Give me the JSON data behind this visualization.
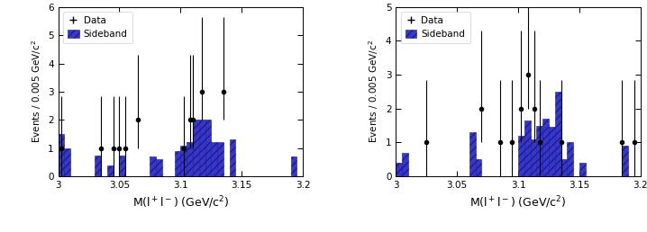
{
  "left_plot": {
    "ylabel": "Events / 0.005 GeV/c$^2$",
    "xlim": [
      3.0,
      3.2
    ],
    "ylim": [
      0,
      6
    ],
    "yticks": [
      0,
      1,
      2,
      3,
      4,
      5,
      6
    ],
    "xtick_values": [
      3.0,
      3.05,
      3.1,
      3.15,
      3.2
    ],
    "xtick_labels": [
      "3",
      "3.05",
      "3.1",
      "3.15",
      "3.2"
    ],
    "bin_width": 0.005,
    "sideband_edges": [
      3.0,
      3.005,
      3.01,
      3.015,
      3.02,
      3.025,
      3.03,
      3.035,
      3.04,
      3.045,
      3.05,
      3.055,
      3.06,
      3.065,
      3.07,
      3.075,
      3.08,
      3.085,
      3.09,
      3.095,
      3.1,
      3.105,
      3.11,
      3.115,
      3.12,
      3.125,
      3.13,
      3.135,
      3.14,
      3.145,
      3.15,
      3.155,
      3.16,
      3.165,
      3.17,
      3.175,
      3.18,
      3.185,
      3.19,
      3.195,
      3.2
    ],
    "sideband_heights": [
      1.5,
      1.0,
      0.0,
      0.0,
      0.0,
      0.0,
      0.75,
      0.0,
      0.4,
      0.0,
      0.75,
      0.0,
      0.0,
      0.0,
      0.0,
      0.7,
      0.6,
      0.0,
      0.0,
      0.9,
      1.1,
      1.2,
      2.0,
      2.0,
      2.0,
      1.2,
      1.2,
      0.0,
      1.3,
      0.0,
      0.0,
      0.0,
      0.0,
      0.0,
      0.0,
      0.0,
      0.0,
      0.0,
      0.7,
      0.0
    ],
    "data_x": [
      3.0025,
      3.035,
      3.045,
      3.05,
      3.055,
      3.065,
      3.1025,
      3.1075,
      3.11,
      3.1175,
      3.135
    ],
    "data_y": [
      1.0,
      1.0,
      1.0,
      1.0,
      1.0,
      2.0,
      1.0,
      2.0,
      2.0,
      3.0,
      3.0
    ],
    "data_yerr_lo": [
      1.0,
      1.0,
      1.0,
      1.0,
      1.0,
      1.0,
      1.0,
      1.0,
      1.0,
      1.0,
      1.0
    ],
    "data_yerr_hi": [
      1.84,
      1.84,
      1.84,
      1.84,
      1.84,
      2.3,
      1.84,
      2.3,
      2.3,
      2.64,
      2.64
    ]
  },
  "right_plot": {
    "ylabel": "Events / 0.005 GeV/c$^2$",
    "xlim": [
      3.0,
      3.2
    ],
    "ylim": [
      0,
      5
    ],
    "yticks": [
      0,
      1,
      2,
      3,
      4,
      5
    ],
    "xtick_values": [
      3.0,
      3.05,
      3.1,
      3.15,
      3.2
    ],
    "xtick_labels": [
      "3",
      "3.05",
      "3.1",
      "3.15",
      "3.2"
    ],
    "bin_width": 0.005,
    "sideband_edges": [
      3.0,
      3.005,
      3.01,
      3.015,
      3.02,
      3.025,
      3.03,
      3.035,
      3.04,
      3.045,
      3.05,
      3.055,
      3.06,
      3.065,
      3.07,
      3.075,
      3.08,
      3.085,
      3.09,
      3.095,
      3.1,
      3.105,
      3.11,
      3.115,
      3.12,
      3.125,
      3.13,
      3.135,
      3.14,
      3.145,
      3.15,
      3.155,
      3.16,
      3.165,
      3.17,
      3.175,
      3.18,
      3.185,
      3.19,
      3.195,
      3.2
    ],
    "sideband_heights": [
      0.4,
      0.7,
      0.0,
      0.0,
      0.0,
      0.0,
      0.0,
      0.0,
      0.0,
      0.0,
      0.0,
      0.0,
      1.3,
      0.5,
      0.0,
      0.0,
      0.0,
      0.0,
      0.0,
      0.0,
      1.2,
      1.65,
      1.1,
      1.5,
      1.7,
      1.45,
      2.5,
      0.5,
      1.0,
      0.0,
      0.4,
      0.0,
      0.0,
      0.0,
      0.0,
      0.0,
      0.0,
      0.9,
      0.0,
      0.0
    ],
    "data_x": [
      3.025,
      3.07,
      3.085,
      3.095,
      3.1025,
      3.108,
      3.113,
      3.118,
      3.135,
      3.185,
      3.195
    ],
    "data_y": [
      1.0,
      2.0,
      1.0,
      1.0,
      2.0,
      3.0,
      2.0,
      1.0,
      1.0,
      1.0,
      1.0
    ],
    "data_yerr_lo": [
      1.0,
      1.0,
      1.0,
      1.0,
      1.0,
      1.0,
      1.0,
      1.0,
      1.0,
      1.0,
      1.0
    ],
    "data_yerr_hi": [
      1.84,
      2.3,
      1.84,
      1.84,
      2.3,
      2.64,
      2.3,
      1.84,
      1.84,
      1.84,
      1.84
    ]
  },
  "bar_facecolor": "#3838c8",
  "bar_edgecolor": "#1a1a99",
  "bar_hatch": "////",
  "bar_linewidth": 0.4,
  "data_color": "black",
  "data_markersize": 3.0,
  "xlabel": "M(l$^+$l$^-$) (GeV/c$^2$)",
  "legend_fontsize": 7.5,
  "tick_labelsize": 7.5,
  "ylabel_fontsize": 7.5,
  "xlabel_fontsize": 9.0
}
